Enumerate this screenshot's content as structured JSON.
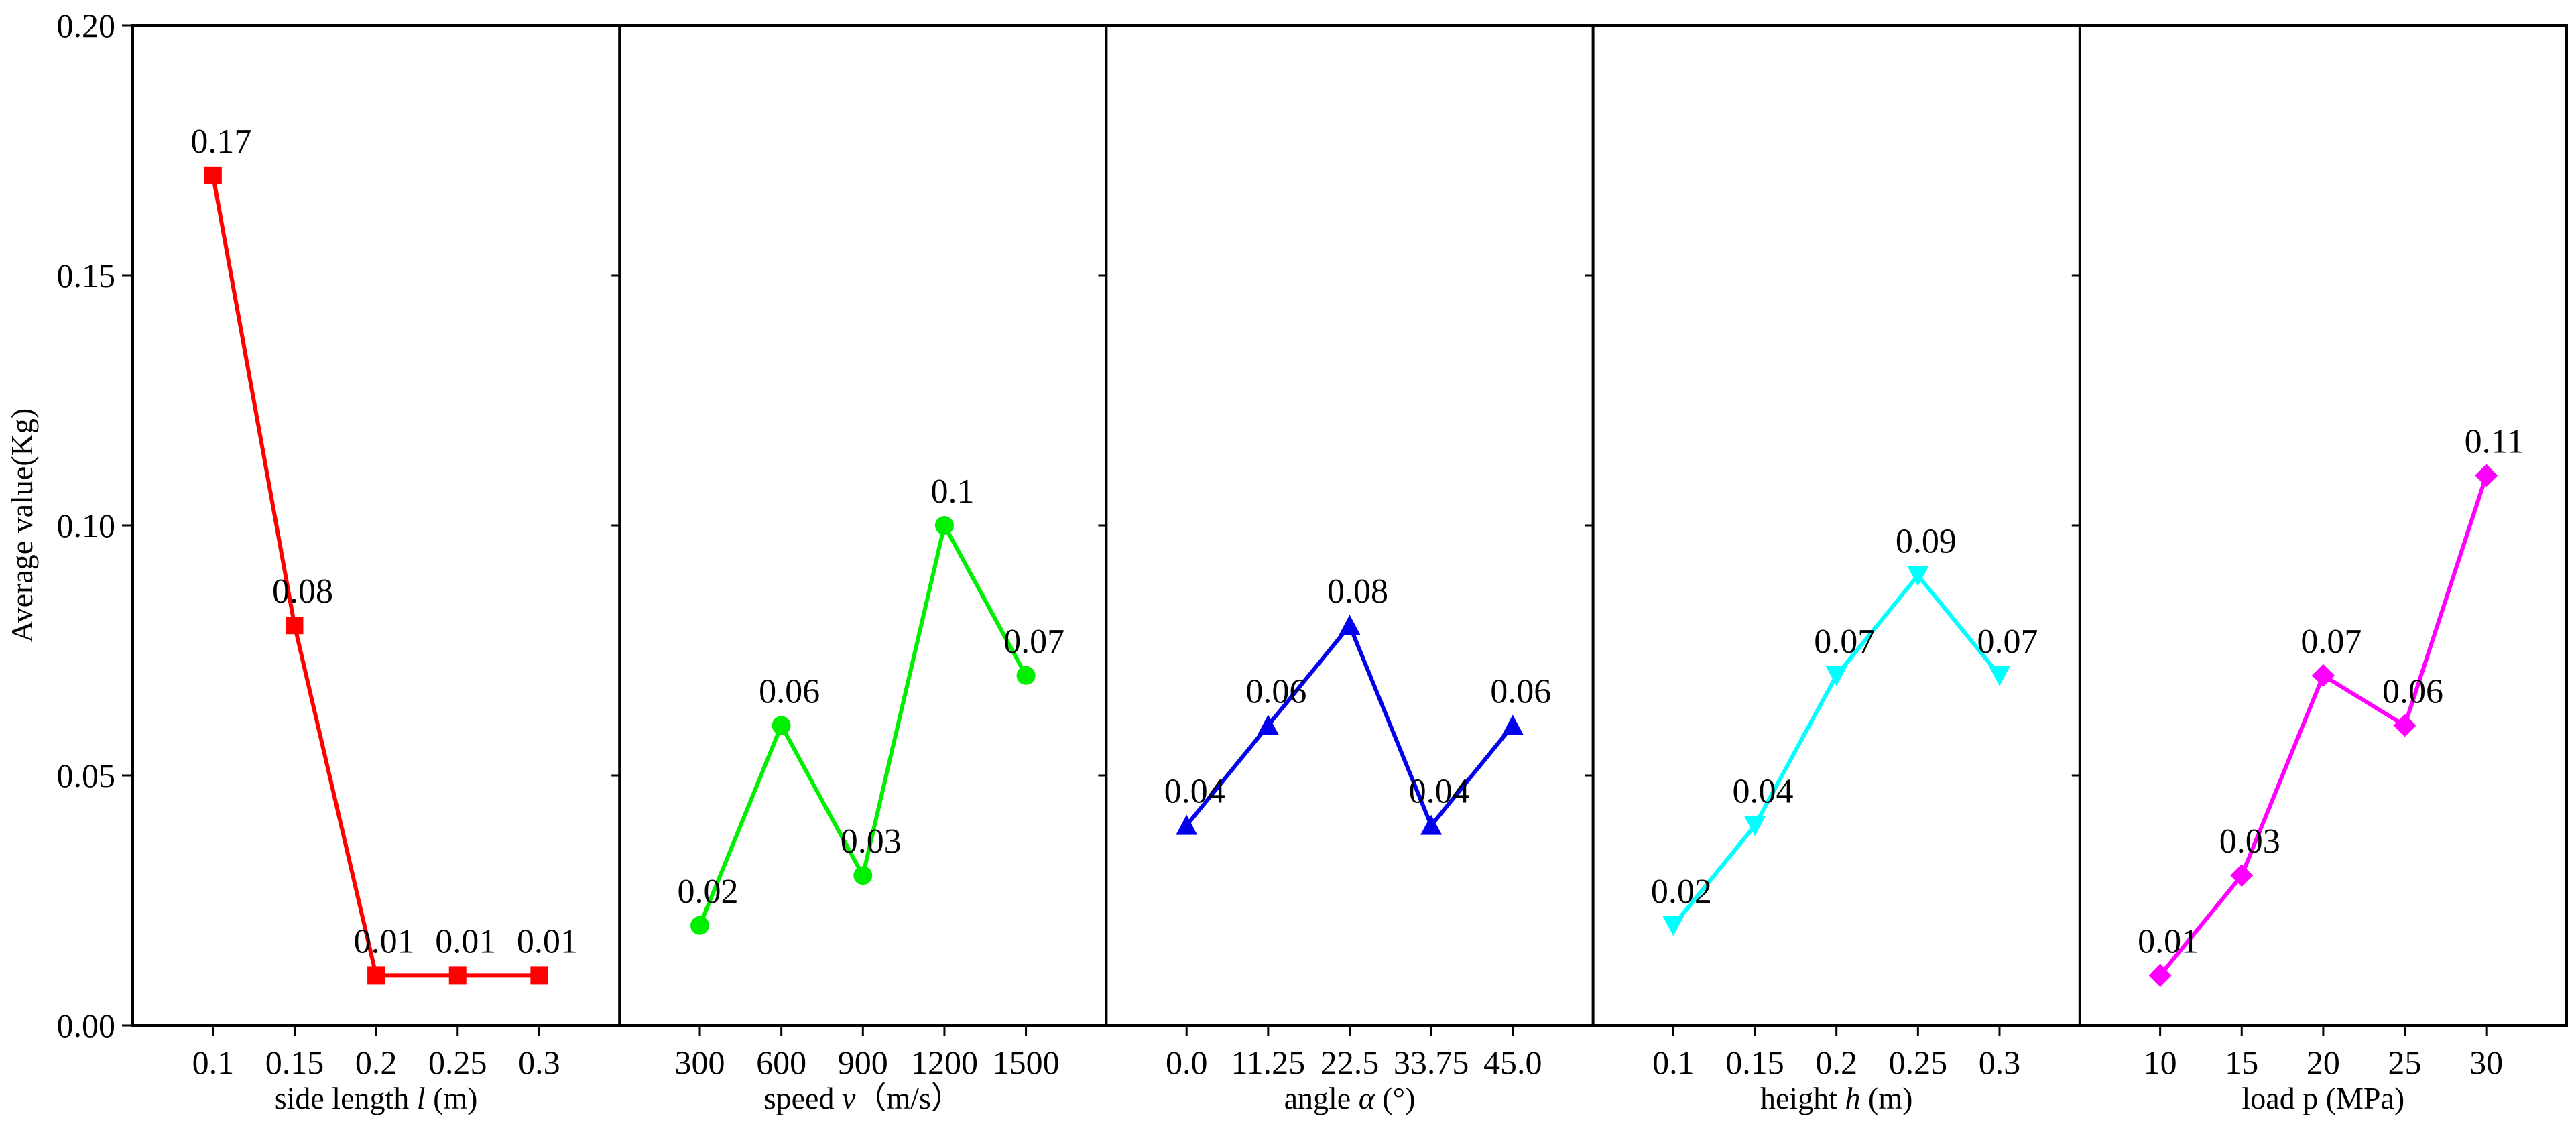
{
  "chart_data": {
    "type": "line",
    "ylabel": "Average value(Kg)",
    "ylim": [
      0,
      0.2
    ],
    "yticks": [
      "0.00",
      "0.05",
      "0.10",
      "0.15",
      "0.20"
    ],
    "ytick_values": [
      0,
      0.05,
      0.1,
      0.15,
      0.2
    ],
    "panels": [
      {
        "id": "side-length",
        "xlabel_parts": [
          {
            "text": "side length ",
            "italic": false
          },
          {
            "text": "l",
            "italic": true
          },
          {
            "text": " (m)",
            "italic": false
          }
        ],
        "categories": [
          "0.1",
          "0.15",
          "0.2",
          "0.25",
          "0.3"
        ],
        "values": [
          0.17,
          0.08,
          0.01,
          0.01,
          0.01
        ],
        "labels": [
          "0.17",
          "0.08",
          "0.01",
          "0.01",
          "0.01"
        ],
        "color": "#ff0000",
        "marker": "square"
      },
      {
        "id": "speed",
        "xlabel_parts": [
          {
            "text": "speed ",
            "italic": false
          },
          {
            "text": "v",
            "italic": true
          },
          {
            "text": "（m/s）",
            "italic": false
          }
        ],
        "categories": [
          "300",
          "600",
          "900",
          "1200",
          "1500"
        ],
        "values": [
          0.02,
          0.06,
          0.03,
          0.1,
          0.07
        ],
        "labels": [
          "0.02",
          "0.06",
          "0.03",
          "0.1",
          "0.07"
        ],
        "color": "#00ee00",
        "marker": "circle"
      },
      {
        "id": "angle",
        "xlabel_parts": [
          {
            "text": "angle ",
            "italic": false
          },
          {
            "text": "α",
            "italic": true
          },
          {
            "text": " (°)",
            "italic": false
          }
        ],
        "categories": [
          "0.0",
          "11.25",
          "22.5",
          "33.75",
          "45.0"
        ],
        "values": [
          0.04,
          0.06,
          0.08,
          0.04,
          0.06
        ],
        "labels": [
          "0.04",
          "0.06",
          "0.08",
          "0.04",
          "0.06"
        ],
        "color": "#0000ee",
        "marker": "triangle-up"
      },
      {
        "id": "height",
        "xlabel_parts": [
          {
            "text": "height ",
            "italic": false
          },
          {
            "text": "h",
            "italic": true
          },
          {
            "text": " (m)",
            "italic": false
          }
        ],
        "categories": [
          "0.1",
          "0.15",
          "0.2",
          "0.25",
          "0.3"
        ],
        "values": [
          0.02,
          0.04,
          0.07,
          0.09,
          0.07
        ],
        "labels": [
          "0.02",
          "0.04",
          "0.07",
          "0.09",
          "0.07"
        ],
        "color": "#00ffff",
        "marker": "triangle-down"
      },
      {
        "id": "load",
        "xlabel_parts": [
          {
            "text": "load p (MPa)",
            "italic": false
          }
        ],
        "categories": [
          "10",
          "15",
          "20",
          "25",
          "30"
        ],
        "values": [
          0.01,
          0.03,
          0.07,
          0.06,
          0.11
        ],
        "labels": [
          "0.01",
          "0.03",
          "0.07",
          "0.06",
          "0.11"
        ],
        "color": "#ff00ff",
        "marker": "diamond"
      }
    ]
  }
}
